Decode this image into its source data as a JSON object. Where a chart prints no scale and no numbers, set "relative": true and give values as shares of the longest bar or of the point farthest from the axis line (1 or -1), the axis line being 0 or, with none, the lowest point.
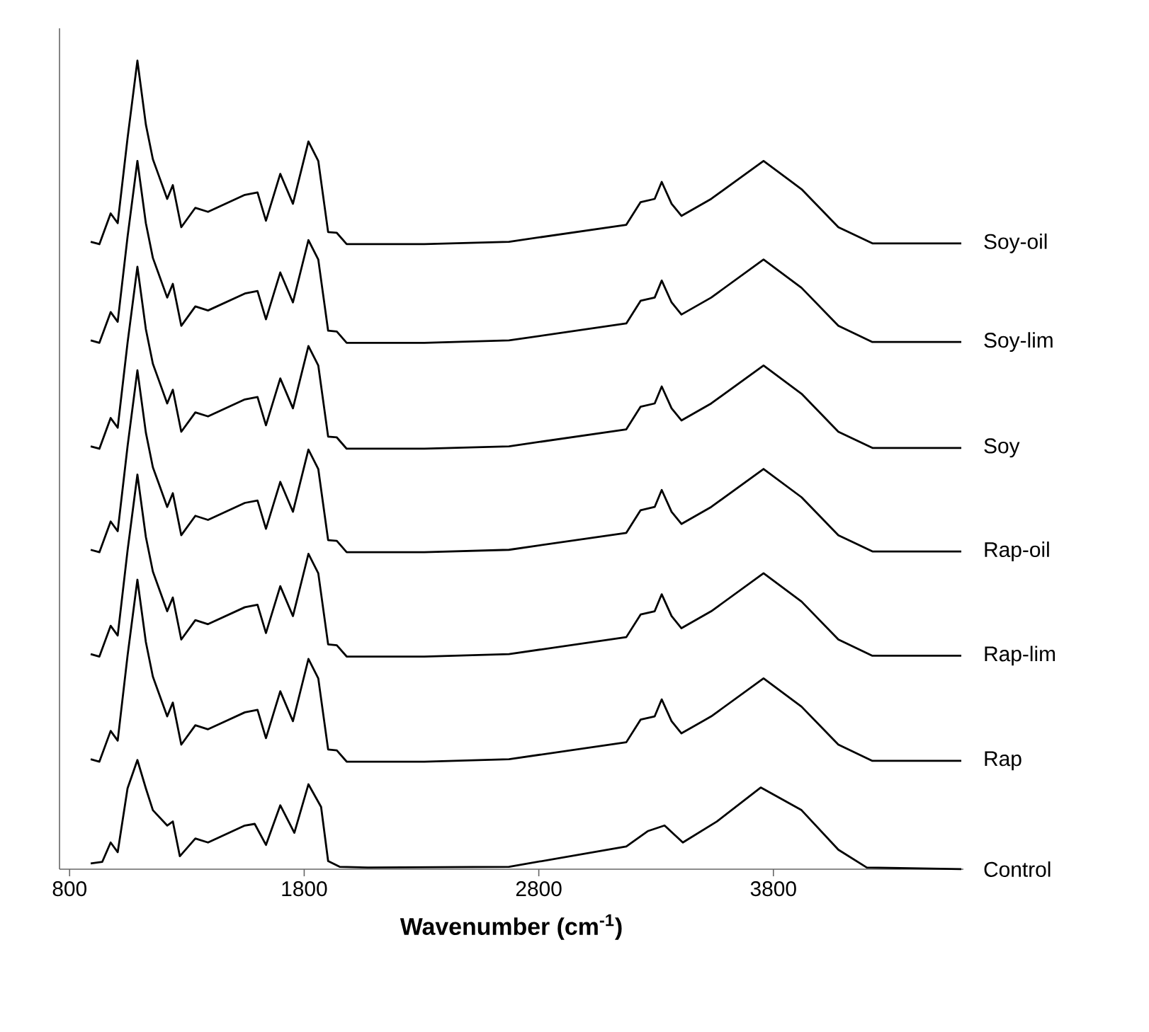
{
  "chart_data": {
    "type": "line",
    "relative": true,
    "xlabel": "Wavenumber (cm$^{-1}$)",
    "xlim": [
      757,
      4610
    ],
    "xticks": [
      800,
      1800,
      2800,
      3800
    ],
    "tick_labels": "x",
    "marker": "none",
    "line_style": "solid",
    "x": [
      890,
      927,
      975,
      1005,
      1047,
      1089,
      1125,
      1155,
      1180,
      1216,
      1240,
      1276,
      1336,
      1390,
      1547,
      1601,
      1637,
      1698,
      1752,
      1818,
      1860,
      1902,
      1939,
      1981,
      2071,
      2312,
      2673,
      3173,
      3234,
      3294,
      3324,
      3366,
      3408,
      3535,
      3758,
      3920,
      4077,
      4222,
      4601
    ],
    "series": [
      {
        "name": "Soy-oil",
        "color": "#000000",
        "values": [
          0.776,
          0.773,
          0.811,
          0.799,
          0.904,
          1,
          0.921,
          0.878,
          0.858,
          0.829,
          0.846,
          0.794,
          0.818,
          0.813,
          0.834,
          0.837,
          0.802,
          0.86,
          0.823,
          0.9,
          0.876,
          0.788,
          0.787,
          0.773,
          0.773,
          0.773,
          0.776,
          0.797,
          0.825,
          0.829,
          0.85,
          0.823,
          0.808,
          0.829,
          0.876,
          0.841,
          0.794,
          0.774,
          0.774
        ]
      },
      {
        "name": "Soy-lim",
        "color": "#000000",
        "values": [
          0.654,
          0.651,
          0.689,
          0.677,
          0.782,
          0.876,
          0.799,
          0.756,
          0.736,
          0.707,
          0.724,
          0.672,
          0.696,
          0.691,
          0.712,
          0.715,
          0.68,
          0.738,
          0.701,
          0.778,
          0.754,
          0.666,
          0.665,
          0.651,
          0.651,
          0.651,
          0.654,
          0.675,
          0.703,
          0.707,
          0.728,
          0.701,
          0.686,
          0.707,
          0.754,
          0.719,
          0.672,
          0.652,
          0.652
        ]
      },
      {
        "name": "Soy",
        "color": "#000000",
        "values": [
          0.523,
          0.52,
          0.558,
          0.546,
          0.651,
          0.745,
          0.668,
          0.625,
          0.605,
          0.576,
          0.593,
          0.541,
          0.565,
          0.56,
          0.581,
          0.584,
          0.549,
          0.607,
          0.57,
          0.647,
          0.623,
          0.535,
          0.534,
          0.52,
          0.52,
          0.52,
          0.523,
          0.544,
          0.572,
          0.576,
          0.597,
          0.57,
          0.555,
          0.576,
          0.623,
          0.588,
          0.541,
          0.521,
          0.521
        ]
      },
      {
        "name": "Rap-oil",
        "color": "#000000",
        "values": [
          0.395,
          0.392,
          0.43,
          0.418,
          0.523,
          0.617,
          0.54,
          0.497,
          0.477,
          0.448,
          0.465,
          0.413,
          0.437,
          0.432,
          0.453,
          0.456,
          0.421,
          0.479,
          0.442,
          0.519,
          0.495,
          0.407,
          0.406,
          0.392,
          0.392,
          0.392,
          0.395,
          0.416,
          0.444,
          0.448,
          0.469,
          0.442,
          0.427,
          0.448,
          0.495,
          0.46,
          0.413,
          0.393,
          0.393
        ]
      },
      {
        "name": "Rap-lim",
        "color": "#000000",
        "values": [
          0.266,
          0.263,
          0.301,
          0.289,
          0.394,
          0.488,
          0.411,
          0.368,
          0.348,
          0.319,
          0.336,
          0.284,
          0.308,
          0.303,
          0.324,
          0.327,
          0.292,
          0.35,
          0.313,
          0.39,
          0.366,
          0.278,
          0.277,
          0.263,
          0.263,
          0.263,
          0.266,
          0.287,
          0.315,
          0.319,
          0.34,
          0.313,
          0.298,
          0.319,
          0.366,
          0.331,
          0.284,
          0.264,
          0.264
        ]
      },
      {
        "name": "Rap",
        "color": "#000000",
        "values": [
          0.136,
          0.133,
          0.171,
          0.159,
          0.264,
          0.358,
          0.281,
          0.238,
          0.218,
          0.189,
          0.206,
          0.154,
          0.178,
          0.173,
          0.194,
          0.197,
          0.162,
          0.22,
          0.183,
          0.26,
          0.236,
          0.148,
          0.147,
          0.133,
          0.133,
          0.133,
          0.136,
          0.157,
          0.185,
          0.189,
          0.21,
          0.183,
          0.168,
          0.189,
          0.236,
          0.201,
          0.154,
          0.134,
          0.134
        ]
      },
      {
        "name": "Control",
        "color": "#000000",
        "x": [
          890,
          939,
          975,
          1005,
          1047,
          1089,
          1125,
          1155,
          1216,
          1240,
          1270,
          1336,
          1390,
          1547,
          1589,
          1637,
          1698,
          1758,
          1818,
          1872,
          1902,
          1951,
          2071,
          2673,
          3173,
          3264,
          3336,
          3414,
          3559,
          3746,
          3920,
          4077,
          4198,
          4601
        ],
        "values": [
          0.007,
          0.009,
          0.033,
          0.021,
          0.1,
          0.135,
          0.1,
          0.073,
          0.054,
          0.059,
          0.016,
          0.038,
          0.033,
          0.054,
          0.056,
          0.03,
          0.079,
          0.045,
          0.105,
          0.077,
          0.01,
          0.003,
          0.002,
          0.003,
          0.028,
          0.047,
          0.054,
          0.033,
          0.059,
          0.101,
          0.073,
          0.024,
          0.002,
          0
        ]
      }
    ]
  }
}
